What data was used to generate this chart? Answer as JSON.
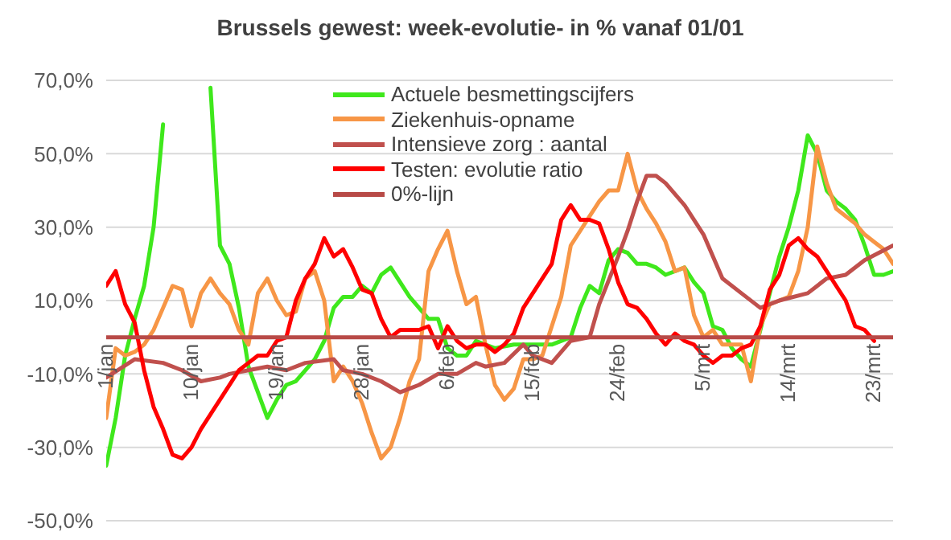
{
  "chart_data": {
    "type": "line",
    "title": "Brussels gewest: week-evolutie- in % vanaf 01/01",
    "xlim": [
      "--01-01",
      "--03-25"
    ],
    "xticks": [
      {
        "value": "--01-01",
        "label": "1/jan"
      },
      {
        "value": "--01-10",
        "label": "10/jan"
      },
      {
        "value": "--01-19",
        "label": "19/jan"
      },
      {
        "value": "--01-28",
        "label": "28/jan"
      },
      {
        "value": "--02-06",
        "label": "6/feb"
      },
      {
        "value": "--02-15",
        "label": "15/feb"
      },
      {
        "value": "--02-24",
        "label": "24/feb"
      },
      {
        "value": "--03-05",
        "label": "5/mrt"
      },
      {
        "value": "--03-14",
        "label": "14/mrt"
      },
      {
        "value": "--03-23",
        "label": "23/mrt"
      }
    ],
    "ylim": [
      -50,
      70
    ],
    "yticks": [
      {
        "value": -50,
        "label": "-50,0%"
      },
      {
        "value": -30,
        "label": "-30,0%"
      },
      {
        "value": -10,
        "label": "-10,0%"
      },
      {
        "value": 10,
        "label": "10,0%"
      },
      {
        "value": 30,
        "label": "30,0%"
      },
      {
        "value": 50,
        "label": "50,0%"
      },
      {
        "value": 70,
        "label": "70,0%"
      }
    ],
    "grid": "y",
    "legend": "top right",
    "line_style": "solid",
    "series": [
      {
        "name": "Actuele besmettingscijfers",
        "color": "#3fe81c",
        "x": [
          "--01-01",
          "--01-02",
          "--01-03",
          "--01-04",
          "--01-05",
          "--01-06",
          "--01-07",
          "--01-08",
          "--01-12",
          "--01-13",
          "--01-14",
          "--01-15",
          "--01-16",
          "--01-17",
          "--01-18",
          "--01-19",
          "--01-20",
          "--01-21",
          "--01-22",
          "--01-23",
          "--01-24",
          "--01-25",
          "--01-26",
          "--01-27",
          "--01-28",
          "--01-29",
          "--01-30",
          "--01-31",
          "--02-01",
          "--02-02",
          "--02-03",
          "--02-04",
          "--02-05",
          "--02-06",
          "--02-07",
          "--02-08",
          "--02-09",
          "--02-11",
          "--02-13",
          "--02-15",
          "--02-17",
          "--02-19",
          "--02-20",
          "--02-21",
          "--02-22",
          "--02-23",
          "--02-24",
          "--02-25",
          "--02-26",
          "--02-27",
          "--02-28",
          "--03-01",
          "--03-02",
          "--03-03",
          "--03-04",
          "--03-05",
          "--03-06",
          "--03-07",
          "--03-08",
          "--03-09",
          "--03-10",
          "--03-11",
          "--03-12",
          "--03-13",
          "--03-14",
          "--03-15",
          "--03-16",
          "--03-17",
          "--03-18",
          "--03-19",
          "--03-20",
          "--03-21",
          "--03-22",
          "--03-23",
          "--03-24",
          "--03-25"
        ],
        "values": [
          -35,
          -22,
          -5,
          5,
          14,
          30,
          58,
          null,
          68,
          25,
          20,
          8,
          -8,
          -15,
          -22,
          -17,
          -13,
          -12,
          -9,
          -6,
          -1,
          8,
          11,
          11,
          14,
          12,
          17,
          19,
          15,
          11,
          8,
          5,
          5,
          -3,
          -5,
          -5,
          -1,
          -3,
          -2,
          -2,
          -2,
          0,
          8,
          14,
          12,
          21,
          24,
          23,
          20,
          20,
          19,
          17,
          18,
          19,
          15,
          12,
          3,
          2,
          -3,
          -6,
          -8,
          2,
          12,
          22,
          30,
          40,
          55,
          50,
          40,
          37,
          35,
          32,
          25,
          17,
          17,
          18
        ]
      },
      {
        "name": "Ziekenhuis-opname",
        "color": "#f79646",
        "x": [
          "--01-01",
          "--01-02",
          "--01-03",
          "--01-04",
          "--01-05",
          "--01-06",
          "--01-07",
          "--01-08",
          "--01-09",
          "--01-10",
          "--01-11",
          "--01-12",
          "--01-13",
          "--01-14",
          "--01-15",
          "--01-16",
          "--01-17",
          "--01-18",
          "--01-19",
          "--01-20",
          "--01-21",
          "--01-22",
          "--01-23",
          "--01-24",
          "--01-25",
          "--01-26",
          "--01-27",
          "--01-28",
          "--01-29",
          "--01-30",
          "--01-31",
          "--02-01",
          "--02-02",
          "--02-03",
          "--02-04",
          "--02-05",
          "--02-06",
          "--02-07",
          "--02-08",
          "--02-09",
          "--02-10",
          "--02-11",
          "--02-12",
          "--02-13",
          "--02-14",
          "--02-15",
          "--02-16",
          "--02-17",
          "--02-18",
          "--02-19",
          "--02-20",
          "--02-21",
          "--02-22",
          "--02-23",
          "--02-24",
          "--02-25",
          "--02-26",
          "--02-27",
          "--02-28",
          "--03-01",
          "--03-02",
          "--03-03",
          "--03-04",
          "--03-05",
          "--03-06",
          "--03-07",
          "--03-08",
          "--03-09",
          "--03-10",
          "--03-11",
          "--03-12",
          "--03-13",
          "--03-14",
          "--03-15",
          "--03-16",
          "--03-17",
          "--03-18",
          "--03-19",
          "--03-20",
          "--03-21",
          "--03-22",
          "--03-23",
          "--03-24",
          "--03-25"
        ],
        "values": [
          -22,
          -3,
          -5,
          -4,
          -2,
          2,
          8,
          14,
          13,
          3,
          12,
          16,
          12,
          9,
          2,
          -2,
          12,
          16,
          10,
          6,
          7,
          16,
          18,
          10,
          -12,
          -8,
          -12,
          -18,
          -26,
          -33,
          -30,
          -22,
          -12,
          -6,
          18,
          24,
          29,
          18,
          9,
          11,
          -2,
          -13,
          -17,
          -14,
          -6,
          -6,
          -5,
          3,
          11,
          25,
          29,
          33,
          37,
          40,
          40,
          50,
          40,
          35,
          31,
          26,
          18,
          19,
          6,
          0,
          2,
          -2,
          -2,
          -2,
          -12,
          3,
          9,
          10,
          11,
          18,
          30,
          52,
          42,
          35,
          33,
          31,
          28,
          26,
          24,
          20
        ]
      },
      {
        "name": "Intensieve zorg : aantal",
        "color": "#c0504d",
        "x": [
          "--01-01",
          "--01-04",
          "--01-07",
          "--01-09",
          "--01-11",
          "--01-13",
          "--01-14",
          "--01-16",
          "--01-18",
          "--01-20",
          "--01-22",
          "--01-25",
          "--01-26",
          "--01-28",
          "--01-30",
          "--02-01",
          "--02-03",
          "--02-05",
          "--02-07",
          "--02-09",
          "--02-10",
          "--02-12",
          "--02-14",
          "--02-15",
          "--02-17",
          "--02-19",
          "--02-21",
          "--02-22",
          "--02-24",
          "--02-25",
          "--02-26",
          "--02-27",
          "--02-28",
          "--03-01",
          "--03-03",
          "--03-05",
          "--03-07",
          "--03-09",
          "--03-11",
          "--03-13",
          "--03-16",
          "--03-18",
          "--03-20",
          "--03-22",
          "--03-25"
        ],
        "values": [
          -11,
          -6,
          -7,
          -9,
          -12,
          -11,
          -10,
          -9,
          -8,
          -9,
          -7,
          -6,
          -9,
          -10,
          -12,
          -15,
          -13,
          -10,
          -10,
          -7,
          -8,
          -7,
          -2,
          -5,
          -7,
          -1,
          0,
          9,
          22,
          29,
          37,
          44,
          44,
          42,
          36,
          28,
          16,
          12,
          8,
          10,
          12,
          16,
          17,
          21,
          25
        ]
      },
      {
        "name": "Testen: evolutie ratio",
        "color": "#ff0000",
        "x": [
          "--01-01",
          "--01-02",
          "--01-03",
          "--01-04",
          "--01-05",
          "--01-06",
          "--01-07",
          "--01-08",
          "--01-09",
          "--01-10",
          "--01-11",
          "--01-12",
          "--01-13",
          "--01-14",
          "--01-15",
          "--01-16",
          "--01-17",
          "--01-18",
          "--01-19",
          "--01-20",
          "--01-21",
          "--01-22",
          "--01-23",
          "--01-24",
          "--01-25",
          "--01-26",
          "--01-27",
          "--01-28",
          "--01-29",
          "--01-30",
          "--01-31",
          "--02-01",
          "--02-02",
          "--02-03",
          "--02-04",
          "--02-05",
          "--02-06",
          "--02-07",
          "--02-08",
          "--02-09",
          "--02-10",
          "--02-11",
          "--02-12",
          "--02-13",
          "--02-14",
          "--02-15",
          "--02-16",
          "--02-17",
          "--02-18",
          "--02-19",
          "--02-20",
          "--02-21",
          "--02-22",
          "--02-23",
          "--02-24",
          "--02-25",
          "--02-26",
          "--02-27",
          "--02-28",
          "--03-01",
          "--03-02",
          "--03-03",
          "--03-04",
          "--03-05",
          "--03-06",
          "--03-07",
          "--03-08",
          "--03-09",
          "--03-10",
          "--03-11",
          "--03-12",
          "--03-13",
          "--03-14",
          "--03-15",
          "--03-16",
          "--03-17",
          "--03-18",
          "--03-19",
          "--03-20",
          "--03-21",
          "--03-22",
          "--03-23"
        ],
        "values": [
          14,
          18,
          9,
          4,
          -9,
          -19,
          -25,
          -32,
          -33,
          -30,
          -25,
          -21,
          -17,
          -13,
          -9,
          -7,
          -5,
          -5,
          -1,
          0,
          10,
          16,
          20,
          27,
          22,
          24,
          19,
          13,
          12,
          5,
          0,
          2,
          2,
          2,
          3,
          -3,
          3,
          -1,
          -3,
          -2,
          -2,
          -4,
          -2,
          1,
          8,
          12,
          16,
          20,
          32,
          36,
          32,
          32,
          31,
          24,
          15,
          9,
          8,
          5,
          1,
          -2,
          1,
          -1,
          -2,
          -5,
          -7,
          -5,
          -5,
          -3,
          -2,
          3,
          13,
          17,
          25,
          27,
          24,
          22,
          18,
          14,
          10,
          3,
          2,
          -1
        ]
      },
      {
        "name": "0%-lijn",
        "color": "#b84a47",
        "x": [
          "--01-01",
          "--03-25"
        ],
        "values": [
          0,
          0
        ]
      }
    ]
  }
}
